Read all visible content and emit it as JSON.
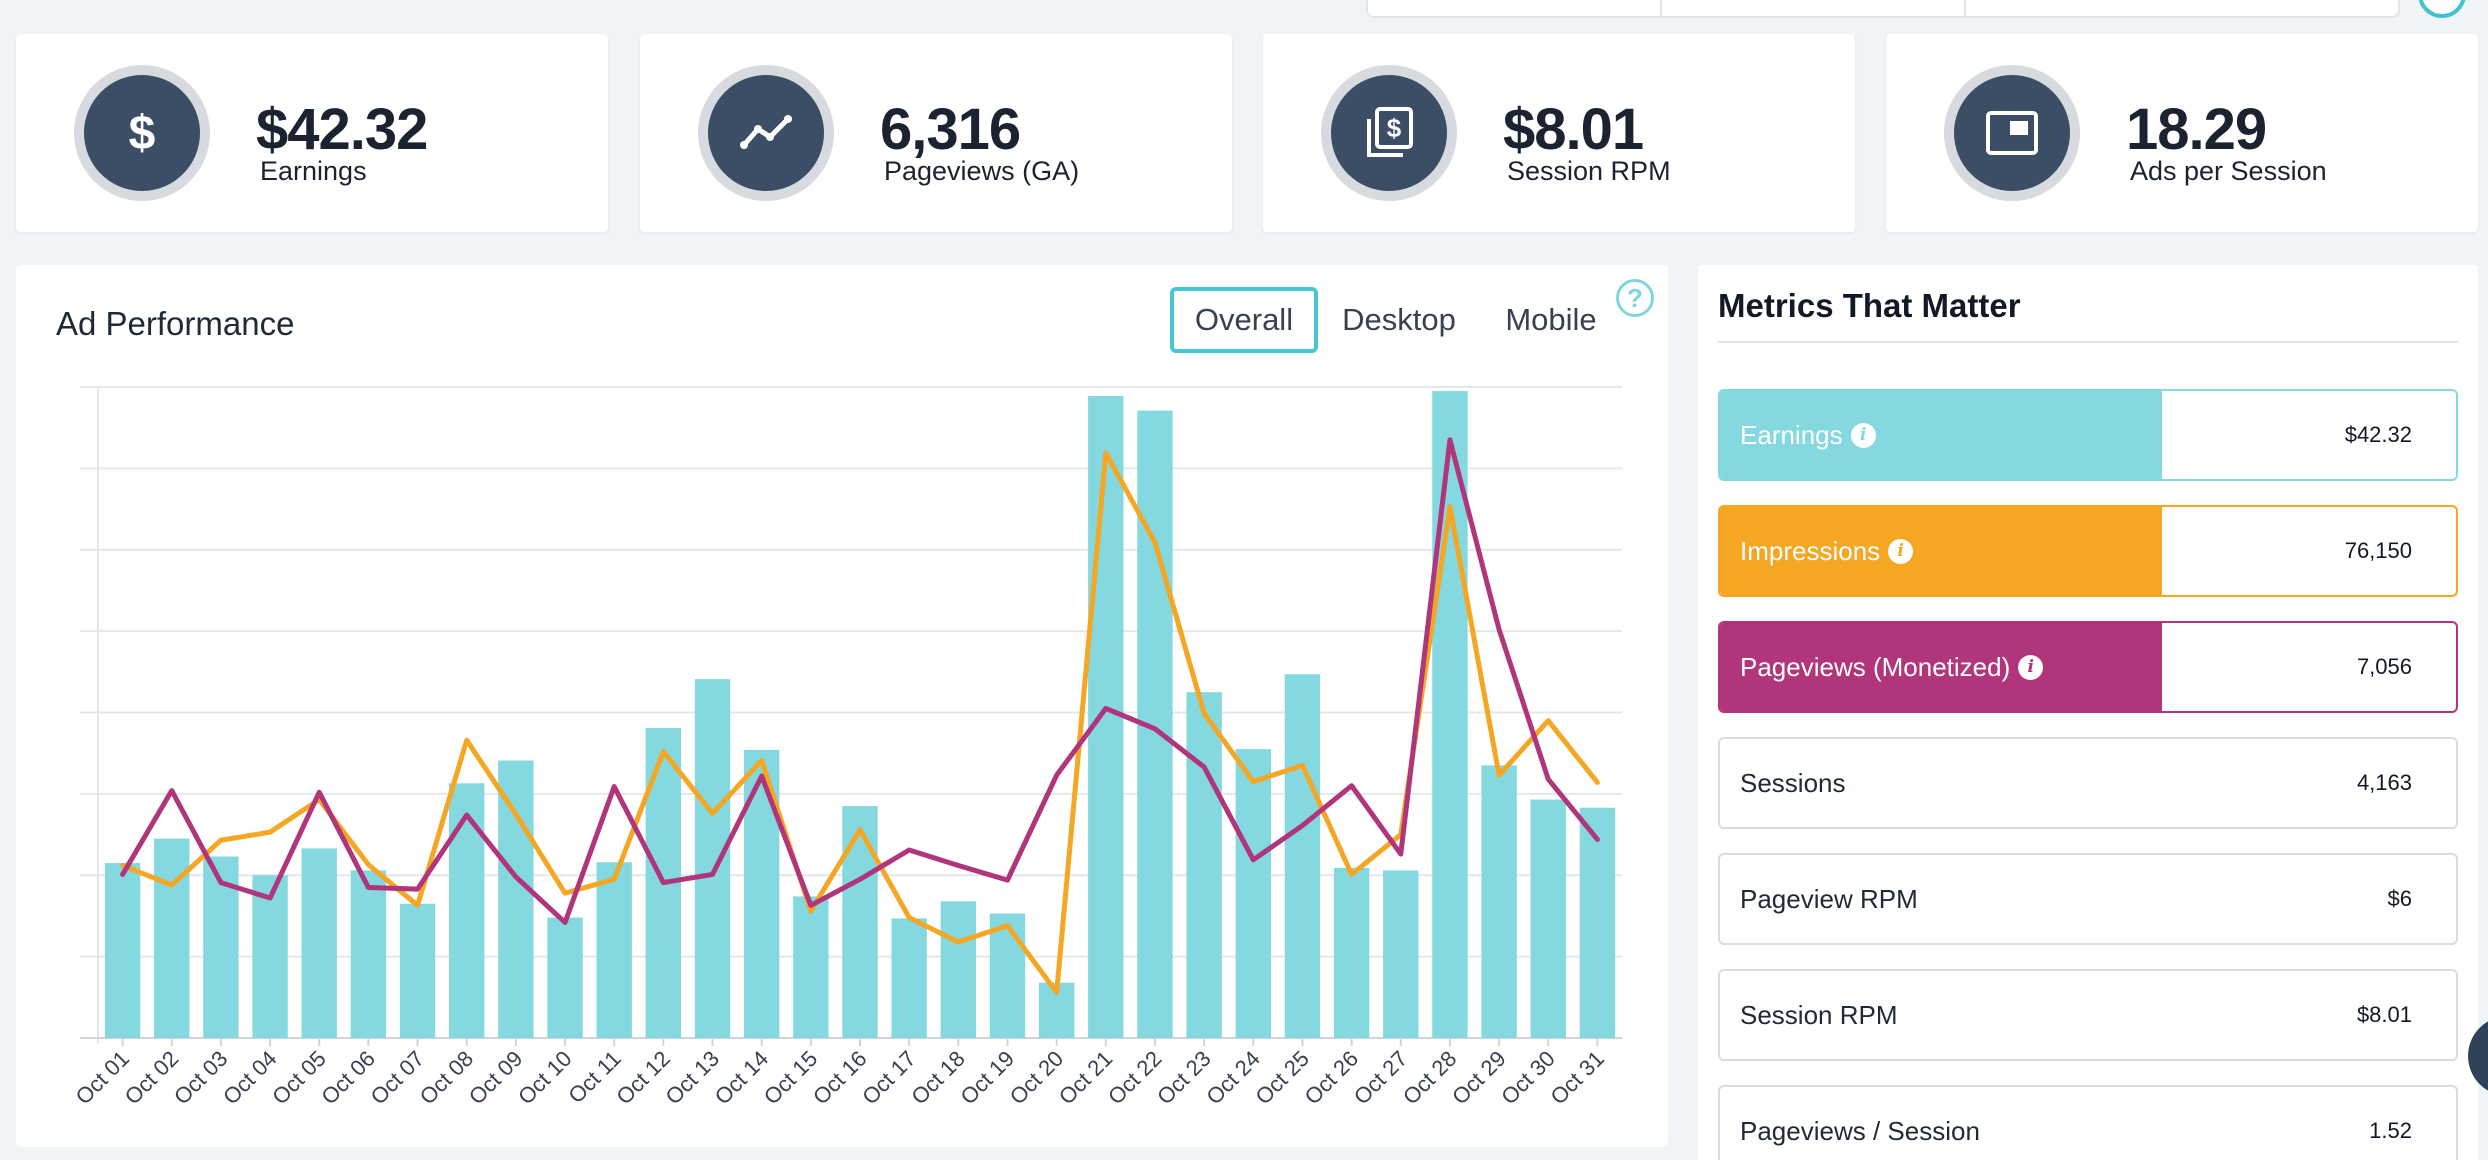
{
  "stats": [
    {
      "value": "$42.32",
      "label": "Earnings",
      "icon": "dollar-icon"
    },
    {
      "value": "6,316",
      "label": "Pageviews (GA)",
      "icon": "trend-line-icon"
    },
    {
      "value": "$8.01",
      "label": "Session RPM",
      "icon": "stacked-dollar-icon"
    },
    {
      "value": "18.29",
      "label": "Ads per Session",
      "icon": "ad-window-icon"
    }
  ],
  "chart_panel": {
    "title": "Ad Performance",
    "tabs": [
      "Overall",
      "Desktop",
      "Mobile"
    ],
    "active_tab": "Overall",
    "help": "?"
  },
  "chart_data": {
    "type": "bar",
    "categories": [
      "Oct 01",
      "Oct 02",
      "Oct 03",
      "Oct 04",
      "Oct 05",
      "Oct 06",
      "Oct 07",
      "Oct 08",
      "Oct 09",
      "Oct 10",
      "Oct 11",
      "Oct 12",
      "Oct 13",
      "Oct 14",
      "Oct 15",
      "Oct 16",
      "Oct 17",
      "Oct 18",
      "Oct 19",
      "Oct 20",
      "Oct 21",
      "Oct 22",
      "Oct 23",
      "Oct 24",
      "Oct 25",
      "Oct 26",
      "Oct 27",
      "Oct 28",
      "Oct 29",
      "Oct 30",
      "Oct 31"
    ],
    "ylim": [
      0,
      8
    ],
    "grid": true,
    "series": [
      {
        "type": "bar",
        "color": "#84d8e0",
        "values": [
          2.15,
          2.45,
          2.23,
          2.0,
          2.33,
          2.06,
          1.65,
          3.13,
          3.41,
          1.48,
          2.16,
          3.81,
          4.41,
          3.54,
          1.74,
          2.85,
          1.47,
          1.68,
          1.53,
          0.68,
          7.89,
          7.71,
          4.25,
          3.55,
          4.47,
          2.09,
          2.06,
          7.95,
          3.35,
          2.93,
          2.83
        ]
      },
      {
        "type": "line",
        "color": "#f5a623",
        "values": [
          2.12,
          1.88,
          2.43,
          2.53,
          2.93,
          2.13,
          1.63,
          3.66,
          2.75,
          1.78,
          1.95,
          3.52,
          2.76,
          3.41,
          1.56,
          2.56,
          1.48,
          1.18,
          1.38,
          0.56,
          7.19,
          6.09,
          3.99,
          3.15,
          3.35,
          2.01,
          2.5,
          6.53,
          3.23,
          3.9,
          3.14
        ]
      },
      {
        "type": "line",
        "color": "#b0357a",
        "values": [
          2.01,
          3.04,
          1.91,
          1.72,
          3.02,
          1.85,
          1.83,
          2.74,
          1.98,
          1.42,
          3.09,
          1.91,
          2.01,
          3.22,
          1.63,
          1.95,
          2.31,
          2.12,
          1.94,
          3.23,
          4.05,
          3.8,
          3.33,
          2.19,
          2.61,
          3.1,
          2.26,
          7.35,
          5.02,
          3.18,
          2.44
        ]
      }
    ]
  },
  "metrics": {
    "title": "Metrics That Matter",
    "rows": [
      {
        "label": "Earnings",
        "value": "$42.32",
        "info": "i",
        "color": "#84d8e0"
      },
      {
        "label": "Impressions",
        "value": "76,150",
        "info": "i",
        "color": "#f5a623"
      },
      {
        "label": "Pageviews (Monetized)",
        "value": "7,056",
        "info": "i",
        "color": "#b0357a"
      },
      {
        "label": "Sessions",
        "value": "4,163"
      },
      {
        "label": "Pageview RPM",
        "value": "$6"
      },
      {
        "label": "Session RPM",
        "value": "$8.01"
      },
      {
        "label": "Pageviews / Session",
        "value": "1.52"
      }
    ]
  }
}
